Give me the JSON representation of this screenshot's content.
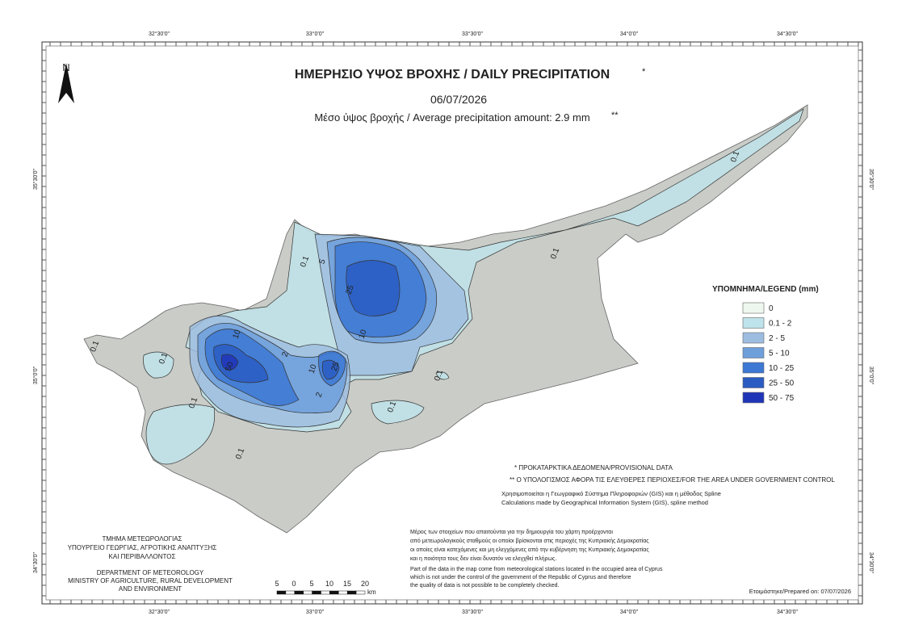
{
  "header": {
    "title": "ΗΜΕΡΗΣΙΟ ΥΨΟΣ ΒΡΟΧΗΣ / DAILY PRECIPITATION",
    "title_mark": "*",
    "date": "06/07/2026",
    "average": "Μέσο ύψος βροχής / Average precipitation amount: 2.9 mm",
    "average_mark": "**"
  },
  "north": "N",
  "graticule": {
    "lon": [
      "32°30'0\"",
      "33°0'0\"",
      "33°30'0\"",
      "34°0'0\"",
      "34°30'0\""
    ],
    "lat": [
      "35°30'0\"",
      "35°0'0\"",
      "34°30'0\""
    ]
  },
  "legend": {
    "title": "ΥΠΟΜΝΗΜΑ/LEGEND (mm)",
    "items": [
      {
        "label": "0",
        "color": "#eef7ee"
      },
      {
        "label": "0.1 - 2",
        "color": "#bfe3ea"
      },
      {
        "label": "2 - 5",
        "color": "#9dbde0"
      },
      {
        "label": "5 - 10",
        "color": "#6e9fdb"
      },
      {
        "label": "10 - 25",
        "color": "#3c78d4"
      },
      {
        "label": "25 - 50",
        "color": "#2a5cc2"
      },
      {
        "label": "50 - 75",
        "color": "#1f35b8"
      }
    ]
  },
  "contour_labels": [
    "0.1",
    "0.1",
    "0.1",
    "0.1",
    "0.1",
    "0.1",
    "0.1",
    "0.1",
    "5",
    "25",
    "10",
    "10",
    "2",
    "25",
    "50",
    "2",
    "10",
    "0.1"
  ],
  "notes": [
    "* ΠΡΟΚΑΤΑΡΚΤΙΚΑ ΔΕΔΟΜΕΝΑ/PROVISIONAL DATA",
    "** Ο ΥΠΟΛΟΓΙΣΜΟΣ ΑΦΟΡΑ ΤΙΣ ΕΛΕΥΘΕΡΕΣ ΠΕΡΙΟΧΕΣ/FOR THE AREA UNDER GOVERNMENT CONTROL",
    "Χρησιμοποιείται η Γεωγραφικό Σύστημα Πληροφοριών (GIS) και η μέθοδος Spline",
    "Calculations made by Geographical Information System (GIS), spline method"
  ],
  "disclaimer_gr": [
    "Μέρος των στοιχείων που απαιτούνται για την δημιουργία του χάρτη προέρχονται",
    "από μετεωρολογικούς σταθμούς οι οποίοι βρίσκονται στις περιοχές της Κυπριακής Δημοκρατίας",
    "οι οποίες είναι κατεχόμενες και μη ελεγχόμενες από την κυβέρνηση της Κυπριακής Δημοκρατίας",
    "και η ποιότητα τους δεν είναι δυνατόν να ελεγχθεί πλήρως."
  ],
  "disclaimer_en": [
    "Part of the data in the map come from meteorological stations located in the occupied area of Cyprus",
    "which is not under the control of the government of the Republic of Cyprus and therefore",
    "the quality of data is not possible to be completely checked."
  ],
  "department_gr": [
    "ΤΜΗΜΑ ΜΕΤΕΩΡΟΛΟΓΙΑΣ",
    "ΥΠΟΥΡΓΕΙΟ ΓΕΩΡΓΙΑΣ, ΑΓΡΟΤΙΚΗΣ ΑΝΑΠΤΥΞΗΣ",
    "ΚΑΙ ΠΕΡΙΒΑΛΛΟΝΤΟΣ"
  ],
  "department_en": [
    "DEPARTMENT OF METEOROLOGY",
    "MINISTRY OF AGRICULTURE, RURAL DEVELOPMENT",
    "AND ENVIRONMENT"
  ],
  "scale": {
    "labels": [
      "5",
      "0",
      "5",
      "10",
      "15",
      "20"
    ],
    "unit": "km"
  },
  "prepared": "Ετοιμάστηκε/Prepared on: 07/07/2026"
}
